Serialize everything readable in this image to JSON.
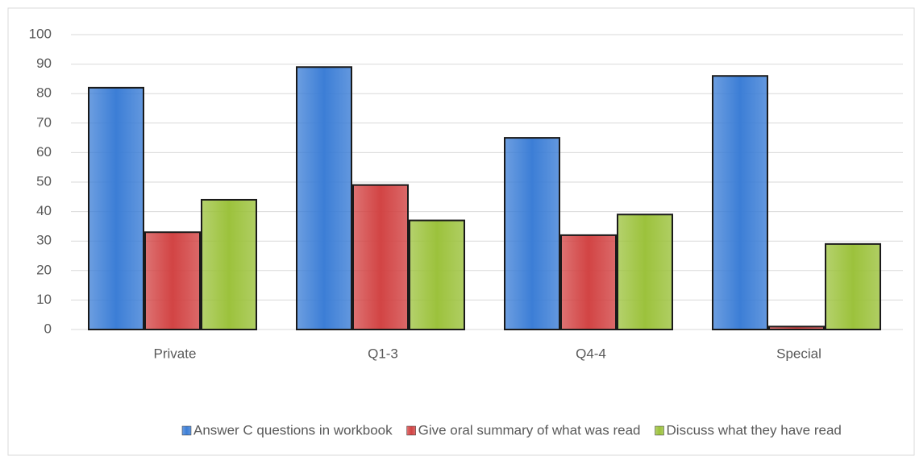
{
  "chart_data": {
    "type": "bar",
    "categories": [
      "Private",
      "Q1-3",
      "Q4-4",
      "Special"
    ],
    "series": [
      {
        "name": "Answer C questions in workbook",
        "color": "#3c7ed6",
        "values": [
          82,
          89,
          65,
          86
        ]
      },
      {
        "name": "Give oral summary of what was read",
        "color": "#d24444",
        "values": [
          33,
          49,
          32,
          1
        ]
      },
      {
        "name": "Discuss what they have read",
        "color": "#9cc23c",
        "values": [
          44,
          37,
          39,
          29
        ]
      }
    ],
    "ylim": [
      0,
      100
    ],
    "yticks": [
      0,
      10,
      20,
      30,
      40,
      50,
      60,
      70,
      80,
      90,
      100
    ],
    "grid": true,
    "legend": "bottom"
  }
}
